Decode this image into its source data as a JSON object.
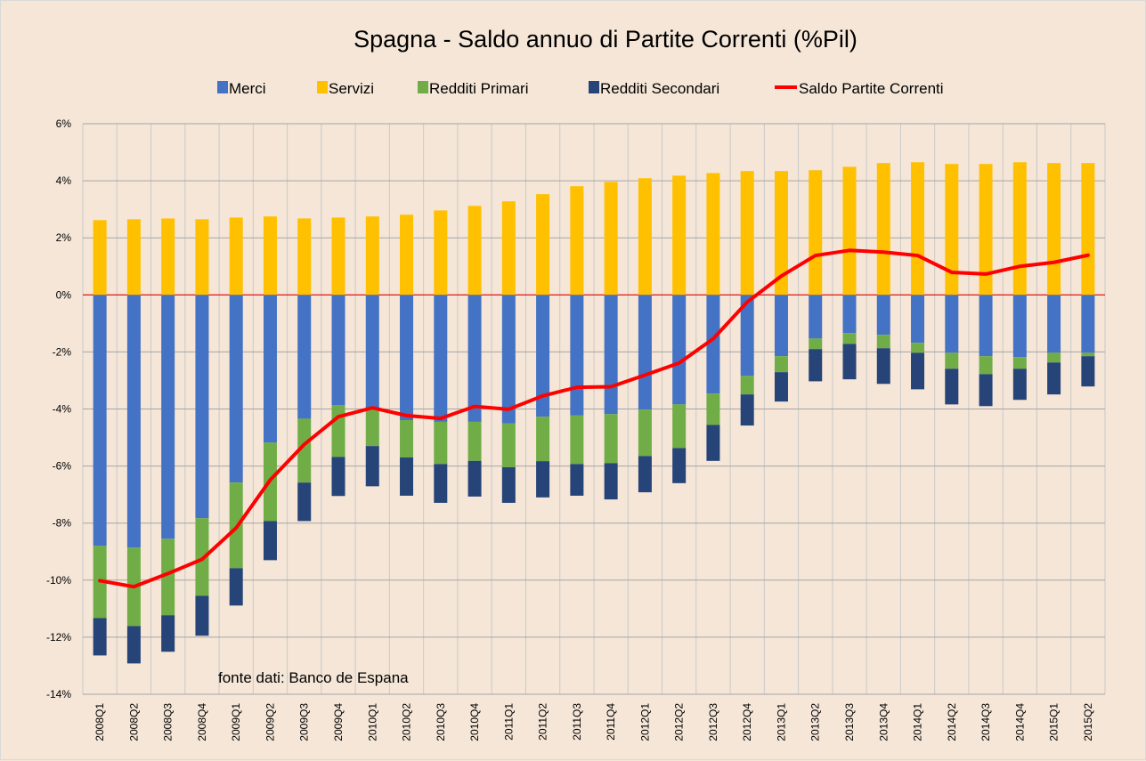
{
  "chart_data": {
    "type": "bar",
    "stacked": true,
    "title": "Spagna - Saldo annuo di Partite Correnti (%Pil)",
    "xlabel": "",
    "ylabel": "",
    "ylim": [
      -14,
      6
    ],
    "yticks": [
      6,
      4,
      2,
      0,
      -2,
      -4,
      -6,
      -8,
      -10,
      -12,
      -14
    ],
    "ytick_labels": [
      "6%",
      "4%",
      "2%",
      "0%",
      "-2%",
      "-4%",
      "-6%",
      "-8%",
      "-10%",
      "-12%",
      "-14%"
    ],
    "grid": true,
    "legend_position": "top",
    "annotation": "fonte dati: Banco de Espana",
    "categories": [
      "2008Q1",
      "2008Q2",
      "2008Q3",
      "2008Q4",
      "2009Q1",
      "2009Q2",
      "2009Q3",
      "2009Q4",
      "2010Q1",
      "2010Q2",
      "2010Q3",
      "2010Q4",
      "2011Q1",
      "2011Q2",
      "2011Q3",
      "2011Q4",
      "2012Q1",
      "2012Q2",
      "2012Q3",
      "2012Q4",
      "2013Q1",
      "2013Q2",
      "2013Q3",
      "2013Q4",
      "2014Q1",
      "2014Q2",
      "2014Q3",
      "2014Q4",
      "2015Q1",
      "2015Q2"
    ],
    "series": [
      {
        "name": "Merci",
        "type": "bar",
        "color": "#4472c4",
        "values": [
          -8.8,
          -8.86,
          -8.55,
          -7.83,
          -6.58,
          -5.18,
          -4.34,
          -3.87,
          -3.96,
          -4.39,
          -4.45,
          -4.45,
          -4.51,
          -4.27,
          -4.23,
          -4.18,
          -4.02,
          -3.84,
          -3.46,
          -2.84,
          -2.15,
          -1.53,
          -1.34,
          -1.4,
          -1.68,
          -2.03,
          -2.15,
          -2.18,
          -2.03,
          -2.03
        ]
      },
      {
        "name": "Servizi",
        "type": "bar",
        "color": "#ffc000",
        "values": [
          2.62,
          2.65,
          2.68,
          2.65,
          2.71,
          2.75,
          2.68,
          2.71,
          2.75,
          2.81,
          2.96,
          3.12,
          3.28,
          3.53,
          3.81,
          3.96,
          4.09,
          4.18,
          4.27,
          4.34,
          4.34,
          4.37,
          4.49,
          4.62,
          4.65,
          4.59,
          4.59,
          4.65,
          4.62,
          4.62
        ]
      },
      {
        "name": "Redditi Primari",
        "type": "bar",
        "color": "#70ad47",
        "values": [
          -2.53,
          -2.75,
          -2.68,
          -2.72,
          -3.0,
          -2.75,
          -2.24,
          -1.81,
          -1.34,
          -1.31,
          -1.48,
          -1.37,
          -1.53,
          -1.56,
          -1.7,
          -1.72,
          -1.63,
          -1.53,
          -1.1,
          -0.65,
          -0.56,
          -0.37,
          -0.38,
          -0.47,
          -0.35,
          -0.56,
          -0.63,
          -0.41,
          -0.34,
          -0.12
        ]
      },
      {
        "name": "Redditi Secondari",
        "type": "bar",
        "color": "#264478",
        "values": [
          -1.31,
          -1.31,
          -1.28,
          -1.4,
          -1.31,
          -1.37,
          -1.35,
          -1.37,
          -1.41,
          -1.34,
          -1.36,
          -1.25,
          -1.25,
          -1.27,
          -1.11,
          -1.27,
          -1.27,
          -1.23,
          -1.26,
          -1.09,
          -1.03,
          -1.13,
          -1.24,
          -1.25,
          -1.28,
          -1.25,
          -1.12,
          -1.09,
          -1.12,
          -1.06
        ]
      },
      {
        "name": "Saldo Partite Correnti",
        "type": "line",
        "color": "#ff0000",
        "values": [
          -10.02,
          -10.23,
          -9.77,
          -9.27,
          -8.17,
          -6.49,
          -5.24,
          -4.27,
          -3.96,
          -4.23,
          -4.33,
          -3.91,
          -4.01,
          -3.54,
          -3.24,
          -3.22,
          -2.81,
          -2.39,
          -1.54,
          -0.25,
          0.66,
          1.38,
          1.56,
          1.5,
          1.38,
          0.79,
          0.73,
          1.0,
          1.14,
          1.39
        ]
      }
    ]
  }
}
